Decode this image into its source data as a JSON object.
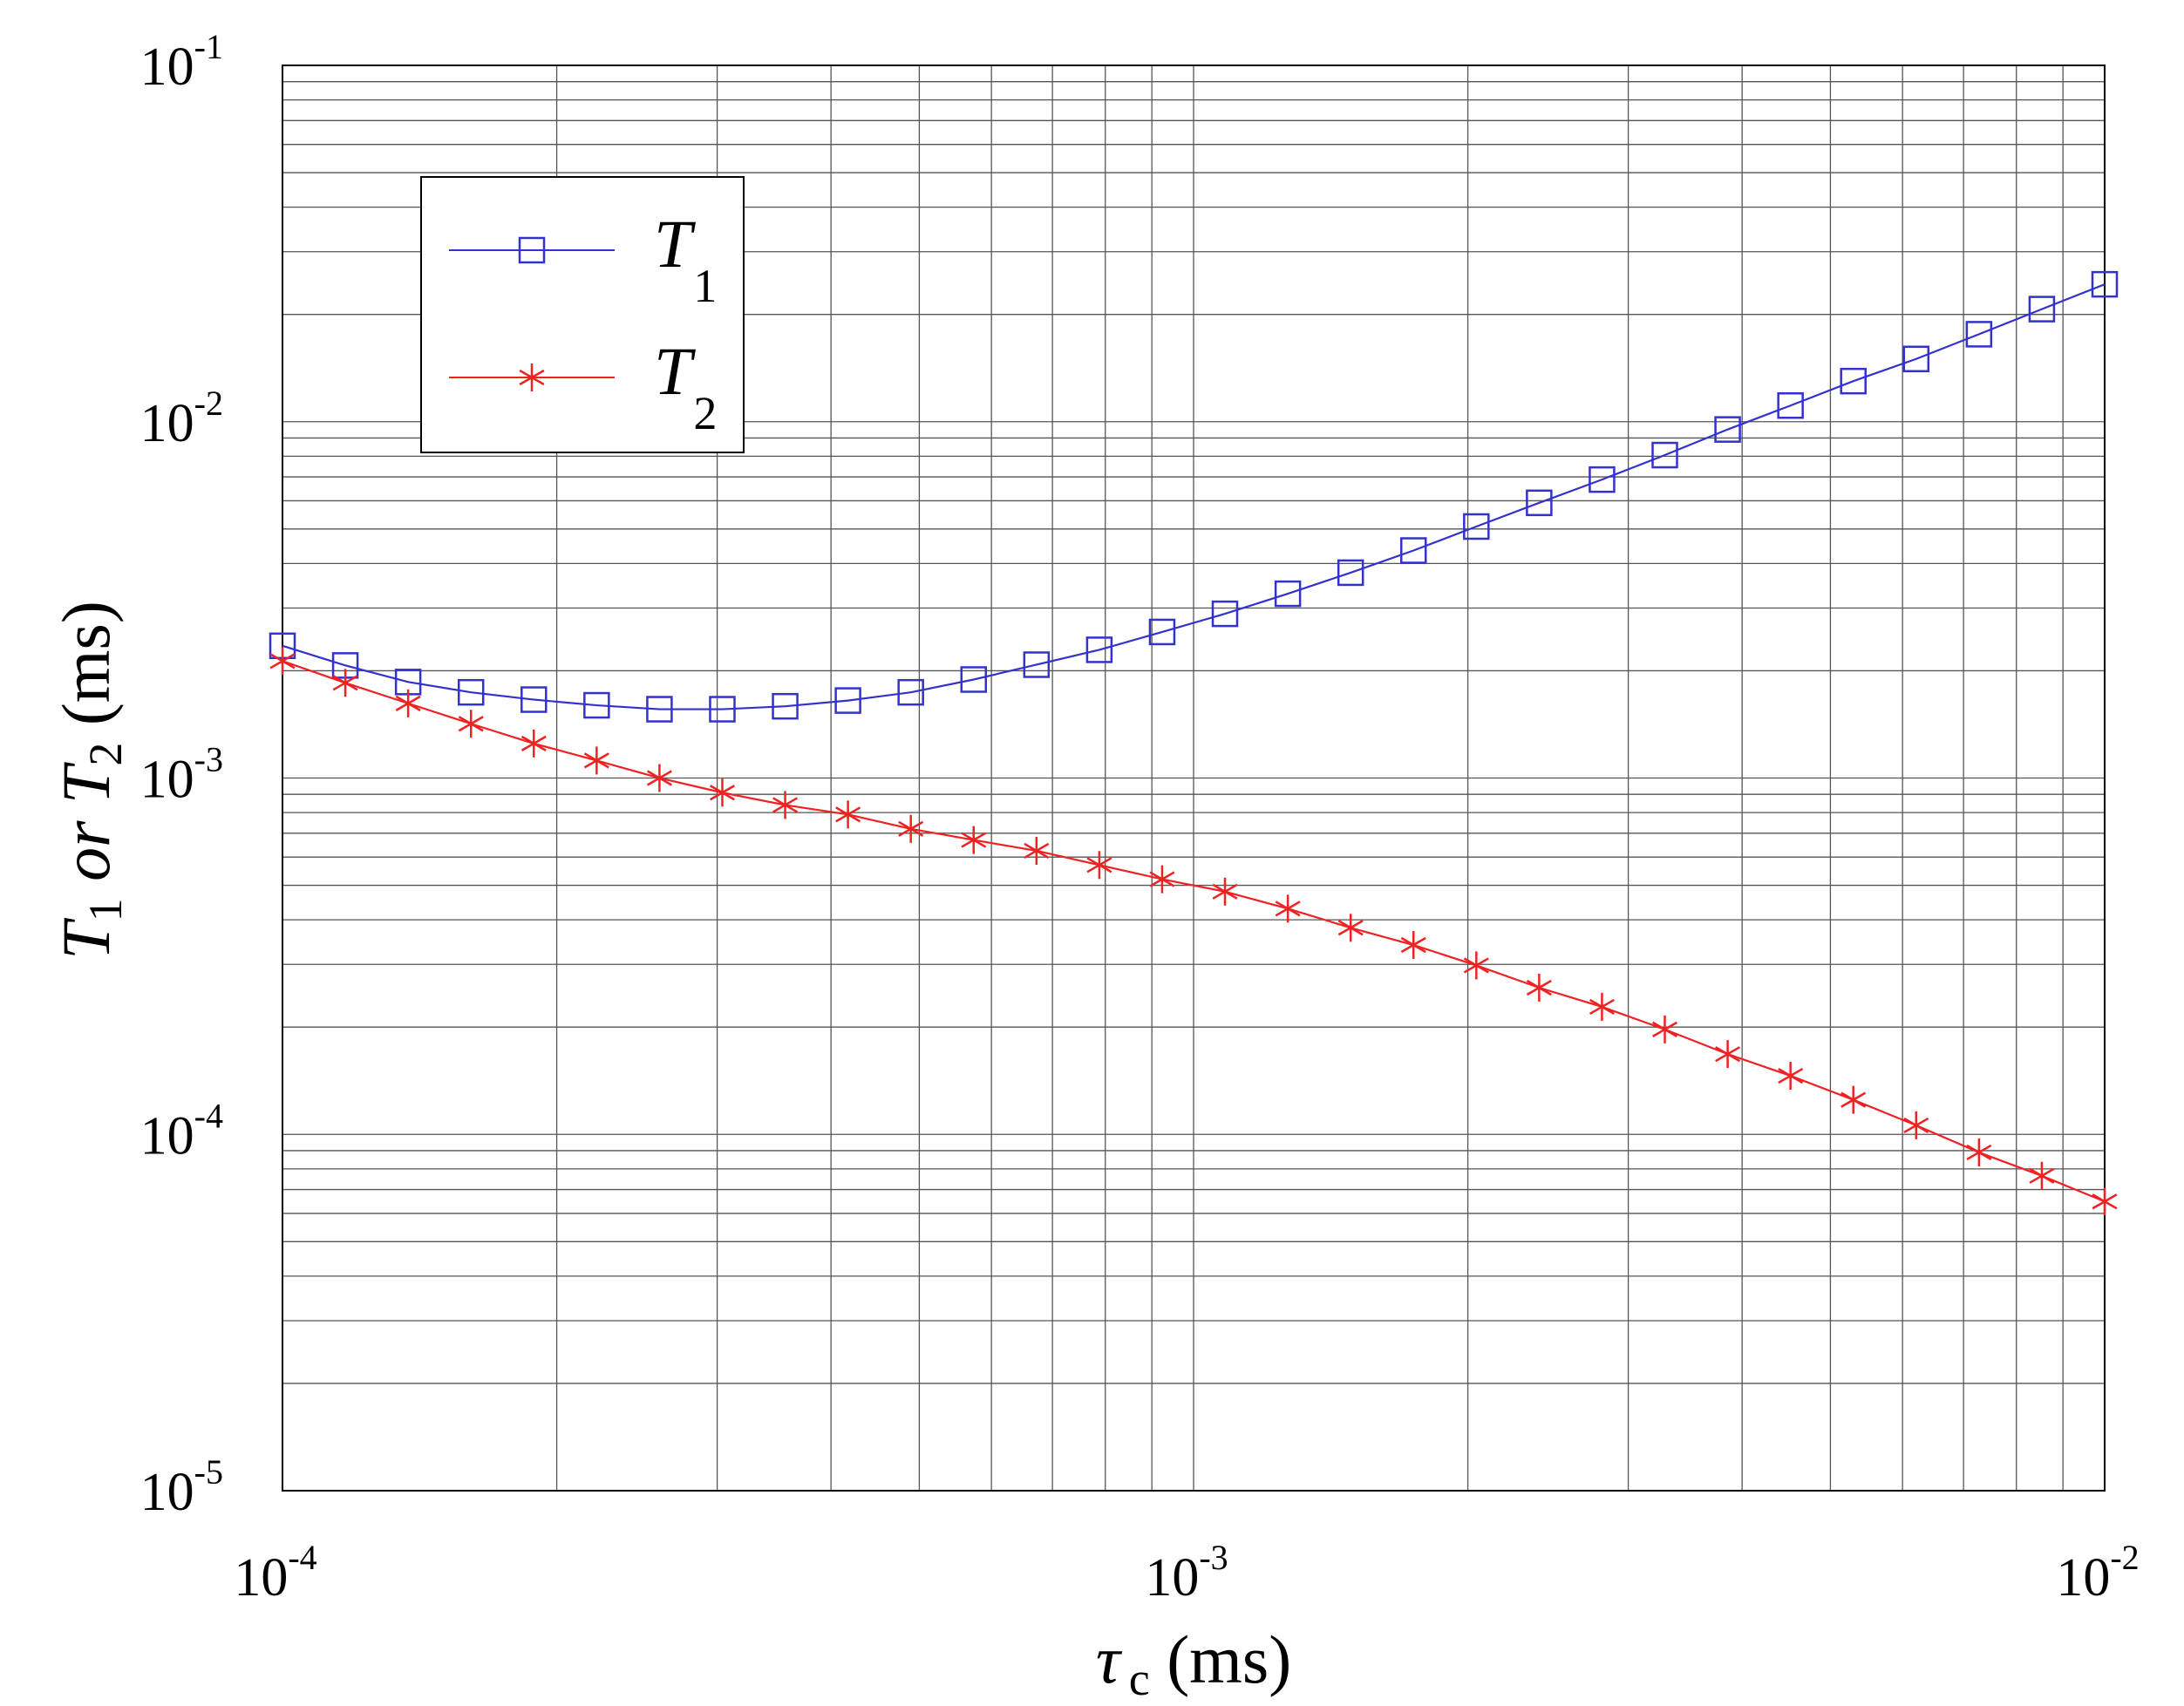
{
  "chart_data": {
    "type": "line",
    "xscale": "log",
    "yscale": "log",
    "xlim": [
      0.0001,
      0.01
    ],
    "ylim": [
      1e-05,
      0.1
    ],
    "grid": true,
    "legend_position": "top-left",
    "xticks": [
      {
        "base": "10",
        "exp": "-4",
        "value": 0.0001
      },
      {
        "base": "10",
        "exp": "-3",
        "value": 0.001
      },
      {
        "base": "10",
        "exp": "-2",
        "value": 0.01
      }
    ],
    "yticks": [
      {
        "base": "10",
        "exp": "-5",
        "value": 1e-05
      },
      {
        "base": "10",
        "exp": "-4",
        "value": 0.0001
      },
      {
        "base": "10",
        "exp": "-3",
        "value": 0.001
      },
      {
        "base": "10",
        "exp": "-2",
        "value": 0.01
      },
      {
        "base": "10",
        "exp": "-1",
        "value": 0.1
      }
    ],
    "xlabel": {
      "symbol": "τ",
      "sub": "c",
      "unit": " (ms)"
    },
    "ylabel": {
      "p1": "T",
      "s1": "1",
      "mid": " or ",
      "p2": "T",
      "s2": "2",
      "unit": " (ms)"
    },
    "x": [
      0.0001,
      0.00011721,
      0.00013738,
      0.00016103,
      0.00018874,
      0.00022122,
      0.00025929,
      0.00030392,
      0.00035622,
      0.00041753,
      0.00048939,
      0.00057362,
      0.00067234,
      0.00078805,
      0.00092367,
      0.0010826,
      0.001269,
      0.0014874,
      0.0017433,
      0.0020434,
      0.002395,
      0.0028072,
      0.0032903,
      0.0038566,
      0.0045204,
      0.0052983,
      0.0062102,
      0.007279,
      0.0085317,
      0.01
    ],
    "series": [
      {
        "name": {
          "base": "T",
          "sub": "1"
        },
        "color": "#3333cc",
        "marker": "square",
        "values": [
          0.00235,
          0.00207,
          0.00186,
          0.00174,
          0.00166,
          0.0016,
          0.00156,
          0.00156,
          0.00159,
          0.00165,
          0.00174,
          0.00189,
          0.00208,
          0.00229,
          0.00257,
          0.00289,
          0.00329,
          0.00377,
          0.00435,
          0.00508,
          0.00592,
          0.00688,
          0.00806,
          0.00951,
          0.0111,
          0.013,
          0.015,
          0.0176,
          0.0207,
          0.0243
        ]
      },
      {
        "name": {
          "base": "T",
          "sub": "2"
        },
        "color": "#ee2222",
        "marker": "asterisk",
        "values": [
          0.00213,
          0.00185,
          0.00162,
          0.00142,
          0.00125,
          0.00112,
          0.001,
          0.00091,
          0.00084,
          0.00079,
          0.00072,
          0.00067,
          0.000625,
          0.00057,
          0.00052,
          0.00048,
          0.00043,
          0.00038,
          0.00034,
          0.000298,
          0.000258,
          0.000228,
          0.000197,
          0.000168,
          0.000146,
          0.000125,
          0.000106,
          8.9e-05,
          7.65e-05,
          6.48e-05
        ]
      }
    ]
  }
}
